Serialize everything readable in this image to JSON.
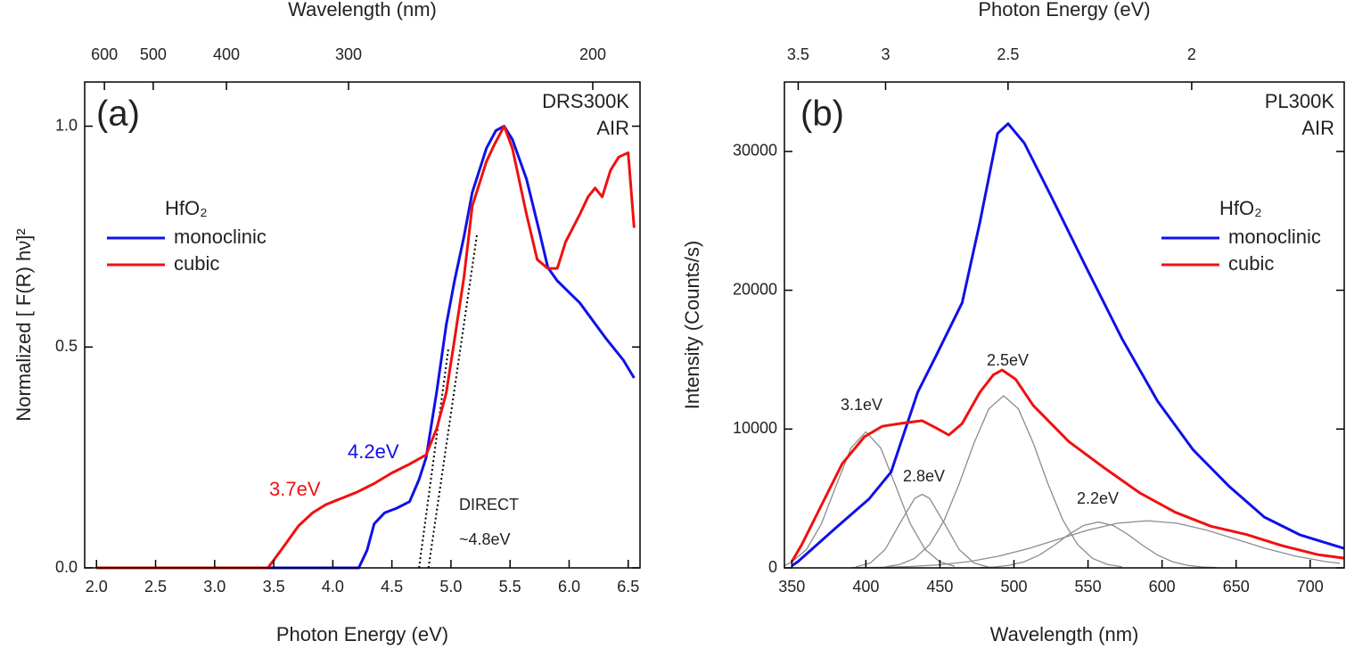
{
  "chart_data": [
    {
      "type": "line",
      "xlabel": "Photon Energy (eV)",
      "x2label": "Wavelength (nm)",
      "ylabel": "Normalized [ F(R) hν]²",
      "xlim": [
        1.9,
        6.6
      ],
      "ylim": [
        0,
        1.1
      ],
      "xticks": [
        {
          "value": 2,
          "label": "2.0"
        },
        2.5,
        {
          "value": 3,
          "label": "3.0"
        },
        3.5,
        {
          "value": 4,
          "label": "4.0"
        },
        4.5,
        {
          "value": 5,
          "label": "5.0"
        },
        5.5,
        {
          "value": 6,
          "label": "6.0"
        },
        6.5
      ],
      "x2ticks": [
        {
          "value": 2.067,
          "label": "600"
        },
        {
          "value": 2.48,
          "label": "500"
        },
        {
          "value": 3.1,
          "label": "400"
        },
        {
          "value": 4.133,
          "label": "300"
        },
        {
          "value": 6.2,
          "label": "200"
        }
      ],
      "yticks": [
        {
          "value": 0,
          "label": "0.0"
        },
        0.5,
        {
          "value": 1,
          "label": "1.0"
        }
      ],
      "grid": false,
      "legend": "upper left",
      "legend_title": "HfO₂",
      "series": [
        {
          "name": "monoclinic",
          "color": "#1010e8",
          "x": [
            2.0,
            4.22,
            4.29,
            4.35,
            4.44,
            4.54,
            4.65,
            4.73,
            4.79,
            4.88,
            4.96,
            5.03,
            5.11,
            5.18,
            5.3,
            5.38,
            5.45,
            5.52,
            5.64,
            5.75,
            5.82,
            5.9,
            6.09,
            6.31,
            6.46,
            6.55
          ],
          "values": [
            0,
            0,
            0.04,
            0.1,
            0.125,
            0.135,
            0.15,
            0.2,
            0.25,
            0.4,
            0.55,
            0.65,
            0.75,
            0.85,
            0.95,
            0.99,
            1.0,
            0.97,
            0.88,
            0.76,
            0.68,
            0.65,
            0.6,
            0.52,
            0.47,
            0.43
          ]
        },
        {
          "name": "cubic",
          "color": "#f01010",
          "x": [
            2.0,
            3.45,
            3.49,
            3.6,
            3.71,
            3.83,
            3.94,
            4.05,
            4.2,
            4.35,
            4.5,
            4.65,
            4.79,
            4.88,
            4.96,
            5.03,
            5.11,
            5.18,
            5.3,
            5.37,
            5.45,
            5.52,
            5.64,
            5.73,
            5.82,
            5.9,
            5.97,
            6.09,
            6.16,
            6.22,
            6.28,
            6.35,
            6.42,
            6.5,
            6.55
          ],
          "values": [
            0,
            0,
            0.014,
            0.054,
            0.095,
            0.125,
            0.143,
            0.155,
            0.171,
            0.191,
            0.215,
            0.235,
            0.256,
            0.316,
            0.396,
            0.517,
            0.658,
            0.819,
            0.92,
            0.96,
            1.0,
            0.95,
            0.8,
            0.698,
            0.678,
            0.678,
            0.738,
            0.8,
            0.84,
            0.86,
            0.84,
            0.9,
            0.93,
            0.94,
            0.77
          ]
        }
      ],
      "tangent_lines": [
        {
          "color": "#000000",
          "x": [
            4.73,
            4.98
          ],
          "values": [
            0,
            0.5
          ]
        },
        {
          "color": "#000000",
          "x": [
            4.81,
            5.22
          ],
          "values": [
            0,
            0.755
          ]
        }
      ],
      "annotations": {
        "panel": "(a)",
        "sample": "DRS300K",
        "atmosphere": "AIR",
        "mono_gap": "4.2eV",
        "cubic_gap": "3.7eV",
        "method": "DIRECT",
        "direct_gap": "~4.8eV"
      }
    },
    {
      "type": "line",
      "xlabel": "Wavelength (nm)",
      "x2label": "Photon Energy (eV)",
      "ylabel": "Intensity (Counts/s)",
      "xlim": [
        345,
        723
      ],
      "ylim": [
        0,
        35000
      ],
      "xticks": [
        350,
        400,
        450,
        500,
        550,
        600,
        650,
        700
      ],
      "x2ticks": [
        {
          "value": 354.3,
          "label": "3.5"
        },
        {
          "value": 413.3,
          "label": "3"
        },
        {
          "value": 496,
          "label": "2.5"
        },
        {
          "value": 620,
          "label": "2"
        }
      ],
      "yticks": [
        0,
        10000,
        20000,
        30000
      ],
      "grid": false,
      "legend": "upper right",
      "legend_title": "HfO₂",
      "series": [
        {
          "name": "monoclinic",
          "color": "#1010e8",
          "x": [
            350,
            354,
            381,
            402,
            417,
            435,
            447,
            465,
            477,
            489,
            496,
            507,
            525,
            549,
            573,
            597,
            621,
            645,
            669,
            693,
            723
          ],
          "values": [
            150,
            440,
            3000,
            4950,
            6900,
            12650,
            15200,
            19100,
            24900,
            31300,
            32000,
            30600,
            26800,
            21600,
            16500,
            12000,
            8500,
            5900,
            3660,
            2380,
            1400
          ]
        },
        {
          "name": "cubic",
          "color": "#f01010",
          "x": [
            350,
            357,
            369,
            384,
            399,
            411,
            423,
            438,
            447,
            456,
            465,
            477,
            486,
            492,
            501,
            513,
            537,
            561,
            585,
            609,
            633,
            657,
            681,
            705,
            723
          ],
          "values": [
            450,
            1730,
            4300,
            7500,
            9440,
            10200,
            10400,
            10600,
            10100,
            9570,
            10400,
            12650,
            13900,
            14260,
            13600,
            11700,
            9100,
            7200,
            5400,
            4000,
            3000,
            2400,
            1600,
            960,
            700
          ]
        }
      ],
      "components": [
        {
          "color": "#8c8c8c",
          "x": [
            345,
            350,
            360,
            370,
            380,
            390,
            400,
            410,
            420,
            430,
            440,
            450,
            460
          ],
          "values": [
            170,
            430,
            1330,
            3180,
            5940,
            8650,
            9800,
            8650,
            5940,
            3180,
            1330,
            430,
            110
          ]
        },
        {
          "color": "#8c8c8c",
          "x": [
            393,
            403,
            413,
            423,
            433,
            438,
            443,
            453,
            463,
            473,
            483
          ],
          "values": [
            60,
            350,
            1320,
            3210,
            5010,
            5300,
            5010,
            3210,
            1320,
            350,
            60
          ]
        },
        {
          "color": "#8c8c8c",
          "x": [
            413,
            423,
            433,
            443,
            453,
            463,
            473,
            483,
            493,
            503,
            513,
            523,
            533,
            543,
            553,
            563,
            573
          ],
          "values": [
            70,
            250,
            690,
            1670,
            3450,
            6040,
            9000,
            11450,
            12400,
            11450,
            9000,
            6040,
            3450,
            1670,
            690,
            250,
            70
          ]
        },
        {
          "color": "#8c8c8c",
          "x": [
            477,
            487,
            497,
            507,
            517,
            527,
            537,
            547,
            557,
            567,
            577,
            587,
            597,
            607,
            617,
            627,
            637
          ],
          "values": [
            20,
            65,
            185,
            445,
            920,
            1610,
            2400,
            3050,
            3300,
            3050,
            2400,
            1610,
            920,
            445,
            185,
            65,
            20
          ]
        },
        {
          "color": "#8c8c8c",
          "x": [
            390,
            410,
            430,
            450,
            470,
            490,
            510,
            530,
            550,
            570,
            590,
            610,
            630,
            650,
            670,
            690,
            710,
            720
          ],
          "values": [
            14,
            37,
            95,
            224,
            459,
            847,
            1397,
            2064,
            2723,
            3216,
            3400,
            3216,
            2723,
            2064,
            1397,
            847,
            459,
            325
          ]
        }
      ],
      "annotations": {
        "panel": "(b)",
        "sample": "PL300K",
        "atmosphere": "AIR",
        "peak1": "3.1eV",
        "peak2": "2.8eV",
        "peak3": "2.5eV",
        "peak4": "2.2eV"
      }
    }
  ]
}
